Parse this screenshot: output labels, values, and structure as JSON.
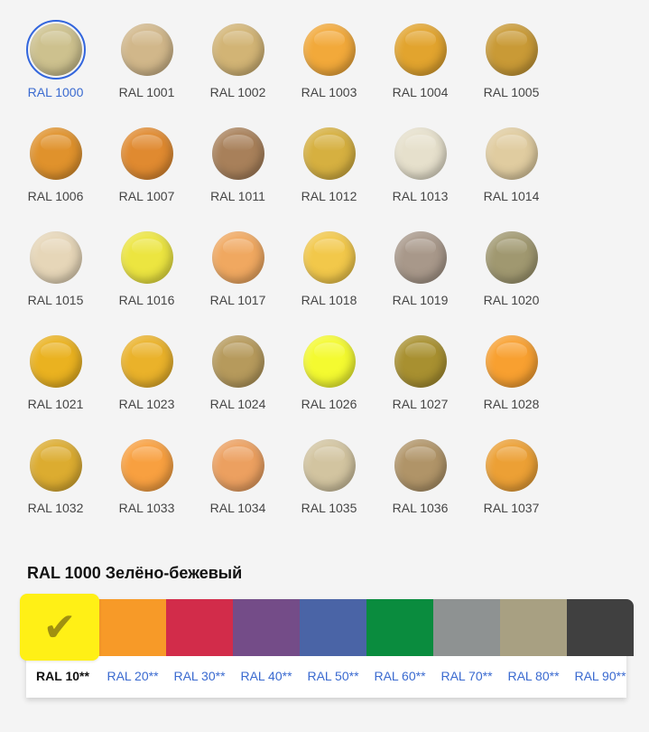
{
  "colors": [
    {
      "label": "RAL 1000",
      "color": "#cdc18e",
      "selected": true
    },
    {
      "label": "RAL 1001",
      "color": "#d1b78a"
    },
    {
      "label": "RAL 1002",
      "color": "#d2b475"
    },
    {
      "label": "RAL 1003",
      "color": "#f2a93a"
    },
    {
      "label": "RAL 1004",
      "color": "#e2a42e"
    },
    {
      "label": "RAL 1005",
      "color": "#c99a36"
    },
    {
      "label": "RAL 1006",
      "color": "#e0922c"
    },
    {
      "label": "RAL 1007",
      "color": "#e08a30"
    },
    {
      "label": "RAL 1011",
      "color": "#a8805a"
    },
    {
      "label": "RAL 1012",
      "color": "#d6b040"
    },
    {
      "label": "RAL 1013",
      "color": "#e6e0cc"
    },
    {
      "label": "RAL 1014",
      "color": "#e0cca0"
    },
    {
      "label": "RAL 1015",
      "color": "#e6d6b8"
    },
    {
      "label": "RAL 1016",
      "color": "#ece540"
    },
    {
      "label": "RAL 1017",
      "color": "#f0a860"
    },
    {
      "label": "RAL 1018",
      "color": "#f2c84a"
    },
    {
      "label": "RAL 1019",
      "color": "#a8988a"
    },
    {
      "label": "RAL 1020",
      "color": "#a09870"
    },
    {
      "label": "RAL 1021",
      "color": "#eab220"
    },
    {
      "label": "RAL 1023",
      "color": "#eab22a"
    },
    {
      "label": "RAL 1024",
      "color": "#b69a5c"
    },
    {
      "label": "RAL 1026",
      "color": "#f4fa30"
    },
    {
      "label": "RAL 1027",
      "color": "#a89030"
    },
    {
      "label": "RAL 1028",
      "color": "#f8a030"
    },
    {
      "label": "RAL 1032",
      "color": "#dcac30"
    },
    {
      "label": "RAL 1033",
      "color": "#f8a040"
    },
    {
      "label": "RAL 1034",
      "color": "#eca060"
    },
    {
      "label": "RAL 1035",
      "color": "#d2c4a0"
    },
    {
      "label": "RAL 1036",
      "color": "#b09468"
    },
    {
      "label": "RAL 1037",
      "color": "#eca035"
    }
  ],
  "selected_title": "RAL 1000 Зелёно-бежевый",
  "groups": [
    {
      "label": "RAL 10**",
      "color": "#fff016",
      "selected": true
    },
    {
      "label": "RAL 20**",
      "color": "#f79a28"
    },
    {
      "label": "RAL 30**",
      "color": "#d22c4a"
    },
    {
      "label": "RAL 40**",
      "color": "#744c88"
    },
    {
      "label": "RAL 50**",
      "color": "#4a64a6"
    },
    {
      "label": "RAL 60**",
      "color": "#0a8c3e"
    },
    {
      "label": "RAL 70**",
      "color": "#8e9292"
    },
    {
      "label": "RAL 80**",
      "color": "#a8a082"
    },
    {
      "label": "RAL 90**",
      "color": "#404040"
    }
  ],
  "check_icon": "✔"
}
